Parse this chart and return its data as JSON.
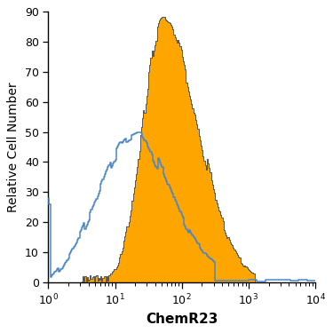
{
  "title": "",
  "xlabel": "ChemR23",
  "ylabel": "Relative Cell Number",
  "ylim": [
    0,
    90
  ],
  "yticks": [
    0,
    10,
    20,
    30,
    40,
    50,
    60,
    70,
    80,
    90
  ],
  "orange_color": "#FFA500",
  "blue_color": "#4A86C8",
  "orange_outline_color": "#555555",
  "xlabel_fontsize": 11,
  "ylabel_fontsize": 10,
  "tick_fontsize": 9,
  "figsize": [
    3.75,
    3.75
  ],
  "dpi": 100
}
